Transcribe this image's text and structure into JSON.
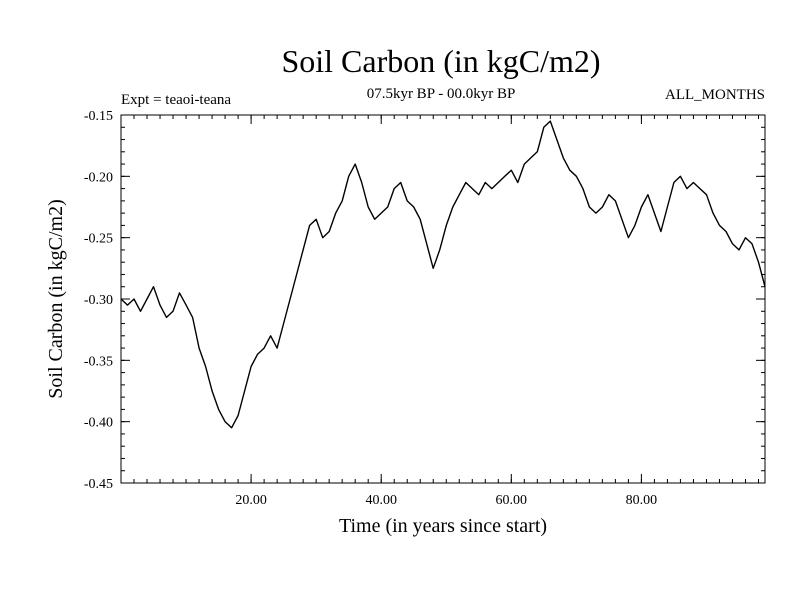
{
  "chart_data": {
    "type": "line",
    "title": "Soil Carbon (in kgC/m2)",
    "subtitle": "07.5kyr BP - 00.0kyr BP",
    "experiment": "Expt = teaoi-teana",
    "months": "ALL_MONTHS",
    "xlabel": "Time (in years since start)",
    "ylabel": "Soil Carbon (in kgC/m2)",
    "xlim": [
      0,
      99
    ],
    "ylim": [
      -0.45,
      -0.15
    ],
    "x_ticks": [
      20,
      40,
      60,
      80
    ],
    "x_tick_labels": [
      "20.00",
      "40.00",
      "60.00",
      "80.00"
    ],
    "y_ticks": [
      -0.45,
      -0.4,
      -0.35,
      -0.3,
      -0.25,
      -0.2,
      -0.15
    ],
    "y_tick_labels": [
      "-0.45",
      "-0.40",
      "-0.35",
      "-0.30",
      "-0.25",
      "-0.20",
      "-0.15"
    ],
    "series": [
      {
        "color": "#000000",
        "x": [
          0,
          1,
          2,
          3,
          4,
          5,
          6,
          7,
          8,
          9,
          10,
          11,
          12,
          13,
          14,
          15,
          16,
          17,
          18,
          19,
          20,
          21,
          22,
          23,
          24,
          25,
          26,
          27,
          28,
          29,
          30,
          31,
          32,
          33,
          34,
          35,
          36,
          37,
          38,
          39,
          40,
          41,
          42,
          43,
          44,
          45,
          46,
          47,
          48,
          49,
          50,
          51,
          52,
          53,
          54,
          55,
          56,
          57,
          58,
          59,
          60,
          61,
          62,
          63,
          64,
          65,
          66,
          67,
          68,
          69,
          70,
          71,
          72,
          73,
          74,
          75,
          76,
          77,
          78,
          79,
          80,
          81,
          82,
          83,
          84,
          85,
          86,
          87,
          88,
          89,
          90,
          91,
          92,
          93,
          94,
          95,
          96,
          97,
          98,
          99
        ],
        "y": [
          -0.3,
          -0.305,
          -0.3,
          -0.31,
          -0.3,
          -0.29,
          -0.305,
          -0.315,
          -0.31,
          -0.295,
          -0.305,
          -0.315,
          -0.34,
          -0.355,
          -0.375,
          -0.39,
          -0.4,
          -0.405,
          -0.395,
          -0.375,
          -0.355,
          -0.345,
          -0.34,
          -0.33,
          -0.34,
          -0.32,
          -0.3,
          -0.28,
          -0.26,
          -0.24,
          -0.235,
          -0.25,
          -0.245,
          -0.23,
          -0.22,
          -0.2,
          -0.19,
          -0.205,
          -0.225,
          -0.235,
          -0.23,
          -0.225,
          -0.21,
          -0.205,
          -0.22,
          -0.225,
          -0.235,
          -0.255,
          -0.275,
          -0.26,
          -0.24,
          -0.225,
          -0.215,
          -0.205,
          -0.21,
          -0.215,
          -0.205,
          -0.21,
          -0.205,
          -0.2,
          -0.195,
          -0.205,
          -0.19,
          -0.185,
          -0.18,
          -0.16,
          -0.155,
          -0.17,
          -0.185,
          -0.195,
          -0.2,
          -0.21,
          -0.225,
          -0.23,
          -0.225,
          -0.215,
          -0.22,
          -0.235,
          -0.25,
          -0.24,
          -0.225,
          -0.215,
          -0.23,
          -0.245,
          -0.225,
          -0.205,
          -0.2,
          -0.21,
          -0.205,
          -0.21,
          -0.215,
          -0.23,
          -0.24,
          -0.245,
          -0.255,
          -0.26,
          -0.25,
          -0.255,
          -0.27,
          -0.29
        ]
      }
    ]
  }
}
